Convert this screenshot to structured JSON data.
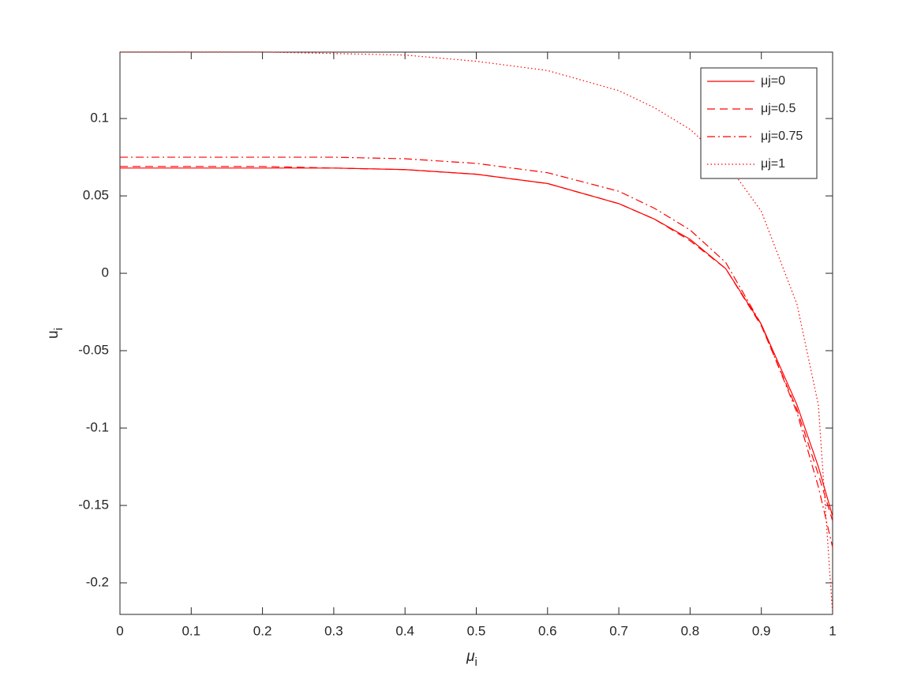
{
  "chart_data": {
    "type": "line",
    "x_label": "μ",
    "x_label_sub": "i",
    "y_label": "u",
    "y_label_sub": "i",
    "x": [
      0,
      0.1,
      0.2,
      0.3,
      0.4,
      0.5,
      0.6,
      0.7,
      0.75,
      0.8,
      0.85,
      0.9,
      0.95,
      0.98,
      1
    ],
    "series": [
      {
        "name": "μj=0",
        "color": "#ff0000",
        "dash": "solid",
        "values": [
          0.068,
          0.068,
          0.068,
          0.068,
          0.067,
          0.064,
          0.058,
          0.045,
          0.035,
          0.022,
          0.003,
          -0.033,
          -0.085,
          -0.125,
          -0.157
        ]
      },
      {
        "name": "μj=0.5",
        "color": "#ff0000",
        "dash": "dashed",
        "values": [
          0.069,
          0.069,
          0.069,
          0.068,
          0.067,
          0.064,
          0.058,
          0.045,
          0.035,
          0.021,
          0.003,
          -0.034,
          -0.088,
          -0.13,
          -0.16
        ]
      },
      {
        "name": "μj=0.75",
        "color": "#ff0000",
        "dash": "dashdot",
        "values": [
          0.075,
          0.075,
          0.075,
          0.075,
          0.074,
          0.071,
          0.065,
          0.053,
          0.042,
          0.028,
          0.007,
          -0.033,
          -0.09,
          -0.138,
          -0.177
        ]
      },
      {
        "name": "μj=1",
        "color": "#ff0000",
        "dash": "dotted",
        "values": [
          0.143,
          0.143,
          0.143,
          0.142,
          0.141,
          0.137,
          0.131,
          0.118,
          0.107,
          0.093,
          0.072,
          0.04,
          -0.02,
          -0.085,
          -0.22
        ]
      }
    ],
    "xlim": [
      0,
      1
    ],
    "xticks": [
      0,
      0.1,
      0.2,
      0.3,
      0.4,
      0.5,
      0.6,
      0.7,
      0.8,
      0.9,
      1
    ],
    "ylim": [
      -0.2204,
      0.1429
    ],
    "yticks": [
      -0.2,
      -0.15,
      -0.1,
      -0.05,
      0,
      0.05,
      0.1
    ],
    "grid": false,
    "legend": "top-right"
  }
}
